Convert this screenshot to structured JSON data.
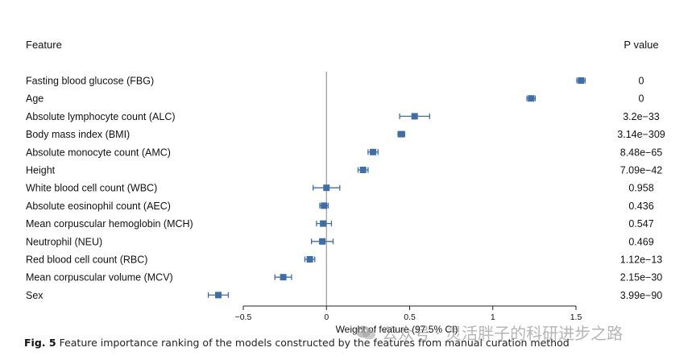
{
  "chart_data": {
    "type": "forest",
    "feature_header": "Feature",
    "pvalue_header": "P value",
    "xlabel": "Weight of feature (97.5% CI)",
    "xlim": [
      -0.5,
      1.5
    ],
    "xticks": [
      -0.5,
      0,
      0.5,
      1,
      1.5
    ],
    "xtick_labels": [
      "−0.5",
      "0",
      "0.5",
      "1",
      "1.5"
    ],
    "reference_line": 0,
    "marker_color": "#3d6ea8",
    "rows": [
      {
        "feature": "Fasting blood glucose (FBG)",
        "estimate": 1.53,
        "ci_low": 1.505,
        "ci_high": 1.555,
        "p_value": "0"
      },
      {
        "feature": "Age",
        "estimate": 1.23,
        "ci_low": 1.205,
        "ci_high": 1.255,
        "p_value": "0"
      },
      {
        "feature": "Absolute lymphocyte count (ALC)",
        "estimate": 0.53,
        "ci_low": 0.44,
        "ci_high": 0.62,
        "p_value": "3.2e−33"
      },
      {
        "feature": "Body mass index (BMI)",
        "estimate": 0.45,
        "ci_low": 0.43,
        "ci_high": 0.47,
        "p_value": "3.14e−309"
      },
      {
        "feature": "Absolute monocyte count (AMC)",
        "estimate": 0.28,
        "ci_low": 0.25,
        "ci_high": 0.31,
        "p_value": "8.48e−65"
      },
      {
        "feature": "Height",
        "estimate": 0.22,
        "ci_low": 0.19,
        "ci_high": 0.25,
        "p_value": "7.09e−42"
      },
      {
        "feature": "White blood cell count (WBC)",
        "estimate": 0.0,
        "ci_low": -0.08,
        "ci_high": 0.08,
        "p_value": "0.958"
      },
      {
        "feature": "Absolute eosinophil count (AEC)",
        "estimate": -0.015,
        "ci_low": -0.04,
        "ci_high": 0.01,
        "p_value": "0.436"
      },
      {
        "feature": "Mean corpuscular hemoglobin (MCH)",
        "estimate": -0.02,
        "ci_low": -0.06,
        "ci_high": 0.03,
        "p_value": "0.547"
      },
      {
        "feature": "Neutrophil (NEU)",
        "estimate": -0.025,
        "ci_low": -0.09,
        "ci_high": 0.04,
        "p_value": "0.469"
      },
      {
        "feature": "Red blood cell count (RBC)",
        "estimate": -0.1,
        "ci_low": -0.13,
        "ci_high": -0.07,
        "p_value": "1.12e−13"
      },
      {
        "feature": "Mean corpuscular volume (MCV)",
        "estimate": -0.26,
        "ci_low": -0.31,
        "ci_high": -0.21,
        "p_value": "2.15e−30"
      },
      {
        "feature": "Sex",
        "estimate": -0.65,
        "ci_low": -0.71,
        "ci_high": -0.59,
        "p_value": "3.99e−90"
      }
    ]
  },
  "caption": {
    "label": "Fig. 5",
    "text": "Feature importance ranking of the models constructed by the features from manual curation method"
  },
  "watermark": {
    "text": "公众号 · 灵活胖子的科研进步之路",
    "icon": "wechat-icon"
  }
}
